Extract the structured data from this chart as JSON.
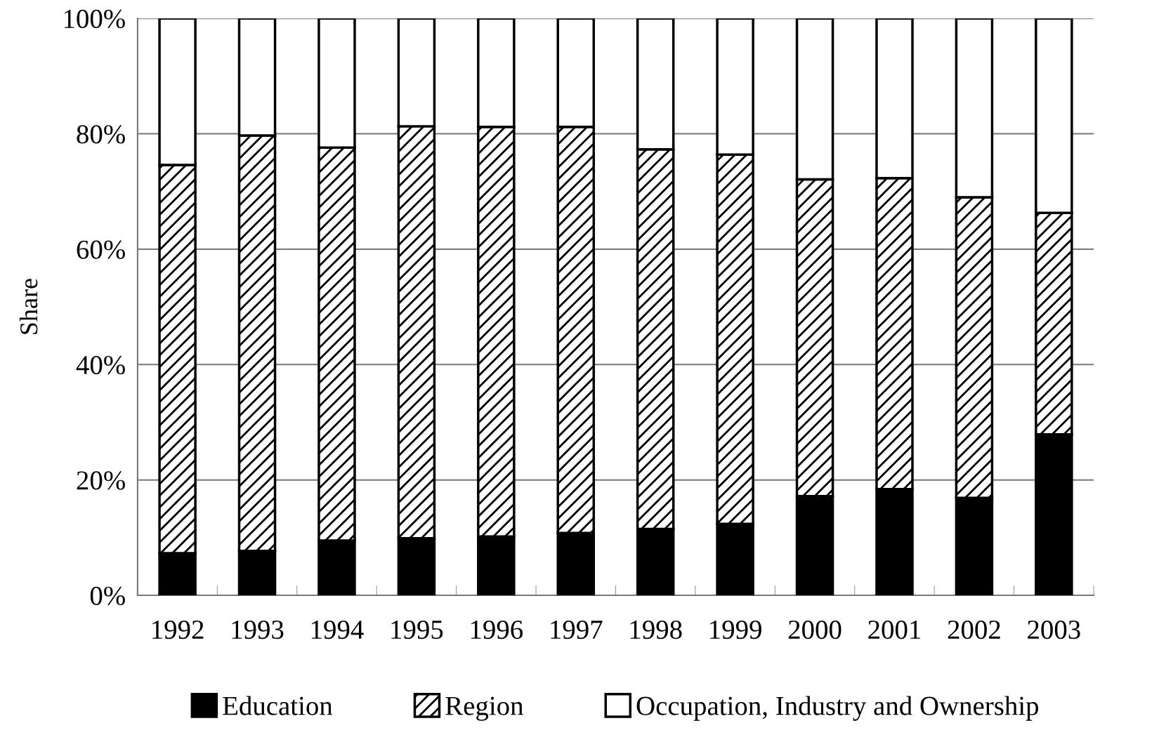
{
  "chart_data": {
    "type": "bar",
    "stacked": true,
    "ylabel": "Share",
    "categories": [
      "1992",
      "1993",
      "1994",
      "1995",
      "1996",
      "1997",
      "1998",
      "1999",
      "2000",
      "2001",
      "2002",
      "2003"
    ],
    "series": [
      {
        "name": "Education",
        "color": "#000000",
        "values": [
          7.3,
          7.7,
          9.5,
          9.9,
          10.2,
          10.8,
          11.5,
          12.4,
          17.2,
          18.4,
          16.9,
          27.9
        ]
      },
      {
        "name": "Region",
        "color": "#000000",
        "values": [
          67.3,
          72.0,
          68.1,
          71.4,
          71.0,
          70.4,
          65.8,
          64.0,
          54.9,
          53.9,
          52.1,
          38.4
        ]
      },
      {
        "name": "Occupation, Industry and Ownership",
        "color": "#ffffff",
        "values": [
          25.4,
          20.3,
          22.4,
          18.7,
          18.8,
          18.8,
          22.7,
          23.6,
          27.9,
          27.7,
          31.0,
          33.7
        ]
      }
    ],
    "ylim": [
      0,
      100
    ],
    "yticks": [
      {
        "value": 0,
        "label": "0%"
      },
      {
        "value": 20,
        "label": "20%"
      },
      {
        "value": 40,
        "label": "40%"
      },
      {
        "value": 60,
        "label": "60%"
      },
      {
        "value": 80,
        "label": "80%"
      },
      {
        "value": 100,
        "label": "100%"
      }
    ],
    "grid": "y",
    "legend": "bottom"
  }
}
